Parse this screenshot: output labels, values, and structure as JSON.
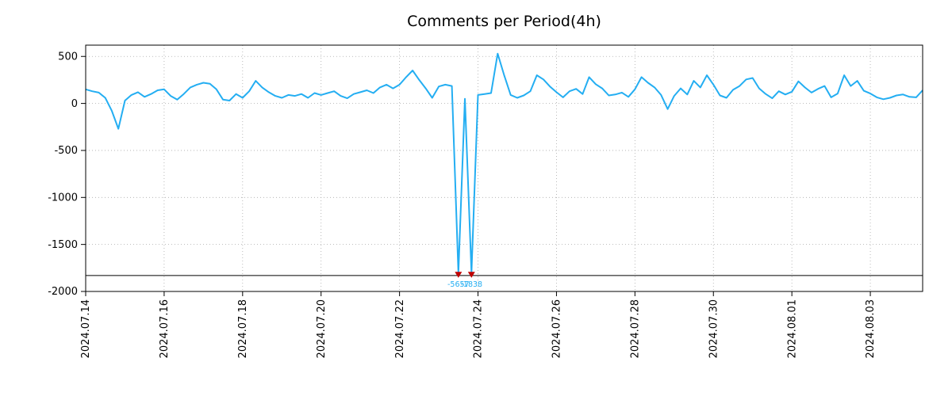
{
  "chart_data": {
    "type": "line",
    "title": "Comments per Period(4h)",
    "x_start": "2024.07.14",
    "interval_hours": 4,
    "ylim": [
      -2000,
      620
    ],
    "yticks": [
      500,
      0,
      -500,
      -1000,
      -1500,
      -2000
    ],
    "xticks": [
      {
        "index": 0,
        "label": "2024.07.14"
      },
      {
        "index": 12,
        "label": "2024.07.16"
      },
      {
        "index": 24,
        "label": "2024.07.18"
      },
      {
        "index": 36,
        "label": "2024.07.20"
      },
      {
        "index": 48,
        "label": "2024.07.22"
      },
      {
        "index": 60,
        "label": "2024.07.24"
      },
      {
        "index": 72,
        "label": "2024.07.26"
      },
      {
        "index": 84,
        "label": "2024.07.28"
      },
      {
        "index": 96,
        "label": "2024.07.30"
      },
      {
        "index": 108,
        "label": "2024.08.01"
      },
      {
        "index": 120,
        "label": "2024.08.03"
      }
    ],
    "grid": true,
    "legend": false,
    "line_color": "#24aef2",
    "marker_color": "#c00000",
    "grid_color": "#aaaaaa",
    "values": [
      150,
      130,
      115,
      60,
      -80,
      -270,
      30,
      90,
      120,
      70,
      100,
      140,
      150,
      80,
      40,
      100,
      170,
      200,
      220,
      210,
      150,
      40,
      30,
      100,
      60,
      130,
      240,
      170,
      120,
      80,
      60,
      90,
      80,
      100,
      60,
      110,
      90,
      110,
      130,
      80,
      55,
      100,
      120,
      140,
      110,
      170,
      200,
      160,
      200,
      280,
      350,
      250,
      160,
      60,
      180,
      200,
      185,
      -5657,
      50,
      -1838,
      90,
      100,
      110,
      530,
      300,
      90,
      60,
      85,
      130,
      300,
      255,
      180,
      120,
      65,
      130,
      155,
      100,
      280,
      205,
      160,
      85,
      95,
      115,
      70,
      150,
      280,
      220,
      170,
      90,
      -60,
      80,
      160,
      95,
      240,
      170,
      300,
      200,
      85,
      60,
      145,
      185,
      255,
      270,
      160,
      100,
      55,
      130,
      95,
      125,
      235,
      170,
      115,
      155,
      185,
      65,
      105,
      300,
      185,
      240,
      135,
      105,
      65,
      45,
      60,
      85,
      95,
      70,
      65,
      140
    ],
    "annotations": {
      "hline_y": -1830,
      "clip_value": -1800,
      "label_y": -1950,
      "clipped_points": [
        {
          "index": 57,
          "value": -5657,
          "label": "-5657"
        },
        {
          "index": 59,
          "value": -1838,
          "label": "-1838"
        }
      ]
    }
  }
}
